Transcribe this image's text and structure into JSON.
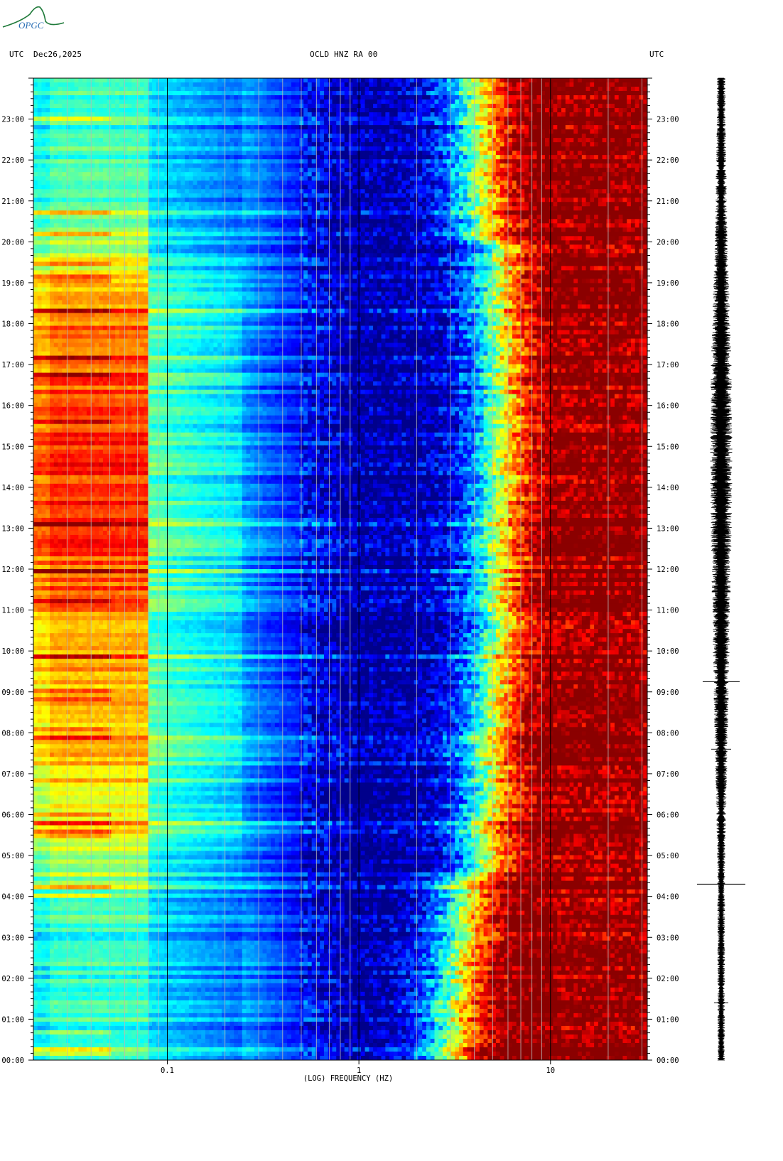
{
  "header": {
    "left_label": "UTC",
    "date": "Dec26,2025",
    "station": "OCLD HNZ RA 00",
    "right_label": "UTC"
  },
  "logo": {
    "text": "OPGC",
    "color": "#1f7a3a"
  },
  "chart_data": {
    "type": "heatmap",
    "title": "",
    "xlabel": "(LOG) FREQUENCY (HZ)",
    "ylabel": "",
    "x_scale": "log",
    "xlim_hz": [
      0.02,
      32
    ],
    "x_ticks": [
      {
        "value": 0.1,
        "label": "0.1"
      },
      {
        "value": 1,
        "label": "1"
      },
      {
        "value": 10,
        "label": "10"
      }
    ],
    "y_unit": "hours UTC",
    "ylim_hours": [
      0,
      24
    ],
    "y_ticks": [
      "00:00",
      "01:00",
      "02:00",
      "03:00",
      "04:00",
      "05:00",
      "06:00",
      "07:00",
      "08:00",
      "09:00",
      "10:00",
      "11:00",
      "12:00",
      "13:00",
      "14:00",
      "15:00",
      "16:00",
      "17:00",
      "18:00",
      "19:00",
      "20:00",
      "21:00",
      "22:00",
      "23:00"
    ],
    "colormap": [
      "#00008b",
      "#0000ff",
      "#0080ff",
      "#00ffff",
      "#80ff80",
      "#ffff00",
      "#ff8000",
      "#ff0000",
      "#8b0000"
    ],
    "grid": true,
    "gridlines_hz": [
      0.03,
      0.04,
      0.05,
      0.06,
      0.07,
      0.08,
      0.09,
      0.2,
      0.3,
      0.4,
      0.5,
      0.6,
      0.7,
      0.8,
      0.9,
      2,
      3,
      4,
      5,
      6,
      7,
      8,
      9,
      20,
      30
    ],
    "trace": {
      "color": "#000000",
      "spikes_hours": [
        9.25,
        7.6,
        4.3,
        1.4
      ]
    }
  }
}
